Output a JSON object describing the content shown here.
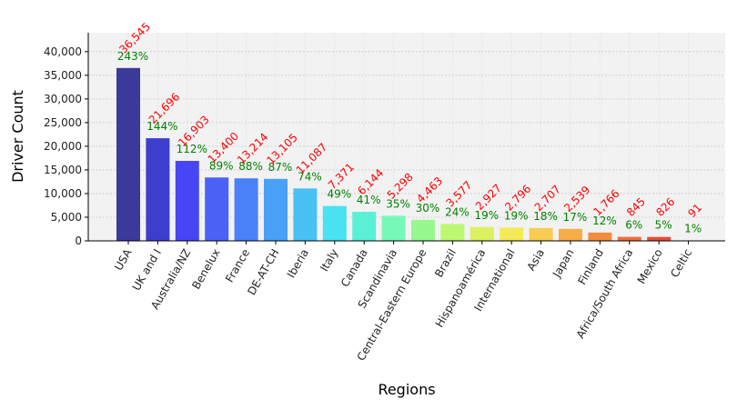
{
  "chart_data": {
    "type": "bar",
    "xlabel": "Regions",
    "ylabel": "Driver Count",
    "ylim": [
      0,
      44000
    ],
    "yticks": [
      0,
      5000,
      10000,
      15000,
      20000,
      25000,
      30000,
      35000,
      40000
    ],
    "ytick_labels": [
      "0",
      "5,000",
      "10,000",
      "15,000",
      "20,000",
      "25,000",
      "30,000",
      "35,000",
      "40,000"
    ],
    "grid": true,
    "categories": [
      "USA",
      "UK and I",
      "Australia/NZ",
      "Benelux",
      "France",
      "DE-AT-CH",
      "Iberia",
      "Italy",
      "Canada",
      "Scandinavia",
      "Central-Eastern Europe",
      "Brazil",
      "Hispanoamérica",
      "International",
      "Asia",
      "Japan",
      "Finland",
      "Africa/South Africa",
      "Mexico",
      "Celtic"
    ],
    "values": [
      36545,
      21696,
      16903,
      13400,
      13214,
      13105,
      11087,
      7371,
      6144,
      5298,
      4463,
      3577,
      2927,
      2796,
      2707,
      2539,
      1766,
      845,
      826,
      91
    ],
    "value_labels": [
      "36,545",
      "21,696",
      "16,903",
      "13,400",
      "13,214",
      "13,105",
      "11,087",
      "7,371",
      "6,144",
      "5,298",
      "4,463",
      "3,577",
      "2,927",
      "2,796",
      "2,707",
      "2,539",
      "1,766",
      "845",
      "826",
      "91"
    ],
    "percent_labels": [
      "243%",
      "144%",
      "112%",
      "89%",
      "88%",
      "87%",
      "74%",
      "49%",
      "41%",
      "35%",
      "30%",
      "24%",
      "19%",
      "19%",
      "18%",
      "17%",
      "12%",
      "6%",
      "5%",
      "1%"
    ],
    "bar_colors": [
      "#3b3a9a",
      "#3d3fcc",
      "#4646f5",
      "#4a62f8",
      "#4a80f8",
      "#4aa0f5",
      "#48c2f5",
      "#48e2f0",
      "#5af0d8",
      "#78f8b8",
      "#98f890",
      "#bcf870",
      "#dcf060",
      "#f4ea58",
      "#f8cc50",
      "#f8ae48",
      "#f48c40",
      "#f06c3c",
      "#e84c34",
      "#c8302a"
    ],
    "value_label_color": "#ff0000",
    "percent_label_color": "#008000",
    "plot_background": "#f2f2f2"
  }
}
